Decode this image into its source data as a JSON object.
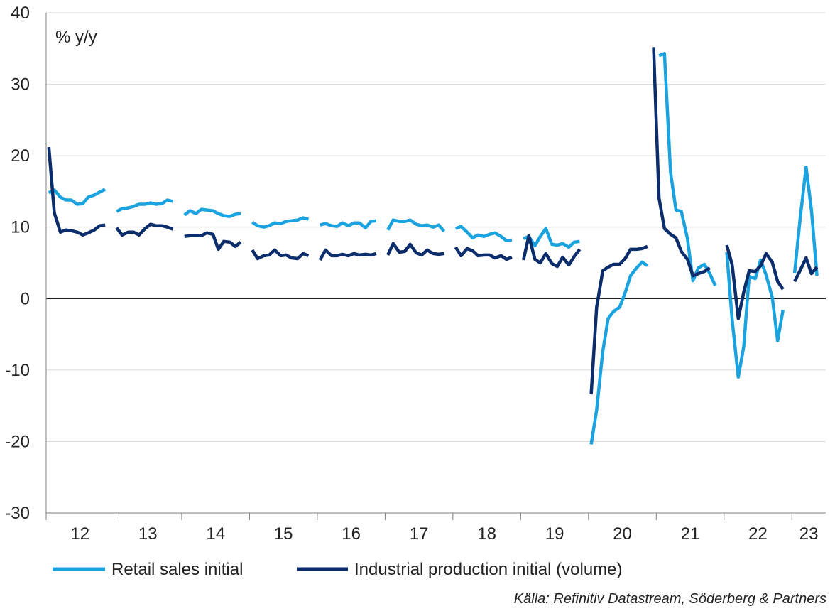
{
  "chart_data": {
    "type": "line",
    "unit_label": "% y/y",
    "source": "Källa: Refinitiv Datastream, Söderberg & Partners",
    "ylim": [
      -30,
      40
    ],
    "yticks": [
      40,
      30,
      20,
      10,
      0,
      -10,
      -20,
      -30
    ],
    "ytick_labels": [
      "40",
      "30",
      "20",
      "10",
      "0",
      "-10",
      "-20",
      "-30"
    ],
    "xlim": [
      2012.0,
      2023.5
    ],
    "xticks": [
      {
        "label": "12",
        "x": 2012.5
      },
      {
        "label": "13",
        "x": 2013.5
      },
      {
        "label": "14",
        "x": 2014.5
      },
      {
        "label": "15",
        "x": 2015.5
      },
      {
        "label": "16",
        "x": 2016.5
      },
      {
        "label": "17",
        "x": 2017.5
      },
      {
        "label": "18",
        "x": 2018.5
      },
      {
        "label": "19",
        "x": 2019.5
      },
      {
        "label": "20",
        "x": 2020.5
      },
      {
        "label": "21",
        "x": 2021.5
      },
      {
        "label": "22",
        "x": 2022.5
      },
      {
        "label": "23",
        "x": 2023.25
      }
    ],
    "grid": true,
    "legend_position": "bottom",
    "series": [
      {
        "name": "Retail sales initial",
        "color": "#1ba3e0",
        "segments": [
          [
            [
              2012.04,
              14.8
            ],
            [
              2012.12,
              15.2
            ],
            [
              2012.21,
              14.2
            ],
            [
              2012.29,
              13.8
            ],
            [
              2012.37,
              13.8
            ],
            [
              2012.46,
              13.2
            ],
            [
              2012.54,
              13.3
            ],
            [
              2012.62,
              14.2
            ],
            [
              2012.71,
              14.5
            ],
            [
              2012.79,
              14.9
            ],
            [
              2012.87,
              15.3
            ]
          ],
          [
            [
              2013.04,
              12.2
            ],
            [
              2013.12,
              12.6
            ],
            [
              2013.21,
              12.7
            ],
            [
              2013.29,
              12.9
            ],
            [
              2013.37,
              13.2
            ],
            [
              2013.46,
              13.2
            ],
            [
              2013.54,
              13.4
            ],
            [
              2013.62,
              13.2
            ],
            [
              2013.71,
              13.3
            ],
            [
              2013.79,
              13.8
            ],
            [
              2013.87,
              13.6
            ]
          ],
          [
            [
              2014.04,
              11.7
            ],
            [
              2014.12,
              12.3
            ],
            [
              2014.21,
              11.9
            ],
            [
              2014.29,
              12.5
            ],
            [
              2014.37,
              12.4
            ],
            [
              2014.46,
              12.3
            ],
            [
              2014.54,
              11.9
            ],
            [
              2014.62,
              11.6
            ],
            [
              2014.71,
              11.5
            ],
            [
              2014.79,
              11.8
            ],
            [
              2014.87,
              11.9
            ]
          ],
          [
            [
              2015.04,
              10.7
            ],
            [
              2015.12,
              10.2
            ],
            [
              2015.21,
              10.0
            ],
            [
              2015.29,
              10.2
            ],
            [
              2015.37,
              10.6
            ],
            [
              2015.46,
              10.5
            ],
            [
              2015.54,
              10.8
            ],
            [
              2015.62,
              10.9
            ],
            [
              2015.71,
              11.0
            ],
            [
              2015.79,
              11.3
            ],
            [
              2015.87,
              11.1
            ]
          ],
          [
            [
              2016.04,
              10.3
            ],
            [
              2016.12,
              10.5
            ],
            [
              2016.21,
              10.2
            ],
            [
              2016.29,
              10.1
            ],
            [
              2016.37,
              10.6
            ],
            [
              2016.46,
              10.2
            ],
            [
              2016.54,
              10.6
            ],
            [
              2016.62,
              10.6
            ],
            [
              2016.71,
              9.9
            ],
            [
              2016.79,
              10.8
            ],
            [
              2016.87,
              10.9
            ]
          ],
          [
            [
              2017.04,
              9.6
            ],
            [
              2017.12,
              11.0
            ],
            [
              2017.21,
              10.8
            ],
            [
              2017.29,
              10.8
            ],
            [
              2017.37,
              11.0
            ],
            [
              2017.46,
              10.4
            ],
            [
              2017.54,
              10.2
            ],
            [
              2017.62,
              10.3
            ],
            [
              2017.71,
              10.0
            ],
            [
              2017.79,
              10.3
            ],
            [
              2017.87,
              9.4
            ]
          ],
          [
            [
              2018.04,
              9.8
            ],
            [
              2018.12,
              10.1
            ],
            [
              2018.21,
              9.3
            ],
            [
              2018.29,
              8.5
            ],
            [
              2018.37,
              8.9
            ],
            [
              2018.46,
              8.7
            ],
            [
              2018.54,
              9.0
            ],
            [
              2018.62,
              9.2
            ],
            [
              2018.71,
              8.7
            ],
            [
              2018.79,
              8.1
            ],
            [
              2018.87,
              8.2
            ]
          ],
          [
            [
              2019.04,
              8.4
            ],
            [
              2019.12,
              8.7
            ],
            [
              2019.21,
              7.4
            ],
            [
              2019.29,
              8.7
            ],
            [
              2019.37,
              9.8
            ],
            [
              2019.46,
              7.6
            ],
            [
              2019.54,
              7.5
            ],
            [
              2019.62,
              7.7
            ],
            [
              2019.71,
              7.2
            ],
            [
              2019.79,
              7.9
            ],
            [
              2019.87,
              8.0
            ]
          ],
          [
            [
              2020.04,
              -20.4
            ],
            [
              2020.12,
              -15.6
            ],
            [
              2020.21,
              -7.4
            ],
            [
              2020.29,
              -2.8
            ],
            [
              2020.37,
              -1.8
            ],
            [
              2020.46,
              -1.2
            ],
            [
              2020.54,
              0.8
            ],
            [
              2020.62,
              3.2
            ],
            [
              2020.71,
              4.3
            ],
            [
              2020.79,
              5.1
            ],
            [
              2020.87,
              4.6
            ]
          ],
          [
            [
              2021.04,
              34.0
            ],
            [
              2021.12,
              34.3
            ],
            [
              2021.21,
              17.7
            ],
            [
              2021.29,
              12.4
            ],
            [
              2021.37,
              12.2
            ],
            [
              2021.46,
              8.4
            ],
            [
              2021.54,
              2.5
            ],
            [
              2021.62,
              4.3
            ],
            [
              2021.71,
              4.8
            ],
            [
              2021.79,
              3.5
            ],
            [
              2021.87,
              1.8
            ]
          ],
          [
            [
              2022.04,
              6.5
            ],
            [
              2022.12,
              -3.0
            ],
            [
              2022.21,
              -11.0
            ],
            [
              2022.29,
              -6.7
            ],
            [
              2022.37,
              3.1
            ],
            [
              2022.46,
              2.8
            ],
            [
              2022.54,
              5.4
            ],
            [
              2022.62,
              3.3
            ],
            [
              2022.71,
              0.2
            ],
            [
              2022.79,
              -5.9
            ],
            [
              2022.87,
              -1.6
            ]
          ],
          [
            [
              2023.04,
              3.6
            ],
            [
              2023.12,
              11.0
            ],
            [
              2023.21,
              18.4
            ],
            [
              2023.29,
              12.3
            ],
            [
              2023.37,
              3.2
            ]
          ]
        ]
      },
      {
        "name": "Industrial production initial (volume)",
        "color": "#0c2d6b",
        "segments": [
          [
            [
              2012.04,
              21.2
            ],
            [
              2012.12,
              12.0
            ],
            [
              2012.21,
              9.3
            ],
            [
              2012.29,
              9.6
            ],
            [
              2012.37,
              9.5
            ],
            [
              2012.46,
              9.3
            ],
            [
              2012.54,
              8.9
            ],
            [
              2012.62,
              9.2
            ],
            [
              2012.71,
              9.6
            ],
            [
              2012.79,
              10.2
            ],
            [
              2012.87,
              10.3
            ]
          ],
          [
            [
              2013.04,
              9.9
            ],
            [
              2013.12,
              8.9
            ],
            [
              2013.21,
              9.3
            ],
            [
              2013.29,
              9.3
            ],
            [
              2013.37,
              8.9
            ],
            [
              2013.46,
              9.8
            ],
            [
              2013.54,
              10.4
            ],
            [
              2013.62,
              10.2
            ],
            [
              2013.71,
              10.2
            ],
            [
              2013.79,
              10.0
            ],
            [
              2013.87,
              9.7
            ]
          ],
          [
            [
              2014.04,
              8.7
            ],
            [
              2014.12,
              8.8
            ],
            [
              2014.21,
              8.8
            ],
            [
              2014.29,
              8.8
            ],
            [
              2014.37,
              9.2
            ],
            [
              2014.46,
              9.0
            ],
            [
              2014.54,
              6.9
            ],
            [
              2014.62,
              8.0
            ],
            [
              2014.71,
              7.9
            ],
            [
              2014.79,
              7.3
            ],
            [
              2014.87,
              7.9
            ]
          ],
          [
            [
              2015.04,
              6.8
            ],
            [
              2015.12,
              5.6
            ],
            [
              2015.21,
              6.0
            ],
            [
              2015.29,
              6.1
            ],
            [
              2015.37,
              6.8
            ],
            [
              2015.46,
              6.0
            ],
            [
              2015.54,
              6.1
            ],
            [
              2015.62,
              5.7
            ],
            [
              2015.71,
              5.6
            ],
            [
              2015.79,
              6.3
            ],
            [
              2015.87,
              6.0
            ]
          ],
          [
            [
              2016.04,
              5.4
            ],
            [
              2016.12,
              6.8
            ],
            [
              2016.21,
              6.0
            ],
            [
              2016.29,
              6.0
            ],
            [
              2016.37,
              6.2
            ],
            [
              2016.46,
              6.0
            ],
            [
              2016.54,
              6.3
            ],
            [
              2016.62,
              6.1
            ],
            [
              2016.71,
              6.2
            ],
            [
              2016.79,
              6.1
            ],
            [
              2016.87,
              6.3
            ]
          ],
          [
            [
              2017.04,
              6.1
            ],
            [
              2017.12,
              7.7
            ],
            [
              2017.21,
              6.5
            ],
            [
              2017.29,
              6.6
            ],
            [
              2017.37,
              7.6
            ],
            [
              2017.46,
              6.4
            ],
            [
              2017.54,
              6.1
            ],
            [
              2017.62,
              6.8
            ],
            [
              2017.71,
              6.3
            ],
            [
              2017.79,
              6.2
            ],
            [
              2017.87,
              6.3
            ]
          ],
          [
            [
              2018.04,
              7.2
            ],
            [
              2018.12,
              6.0
            ],
            [
              2018.21,
              7.0
            ],
            [
              2018.29,
              6.7
            ],
            [
              2018.37,
              6.0
            ],
            [
              2018.46,
              6.1
            ],
            [
              2018.54,
              6.1
            ],
            [
              2018.62,
              5.7
            ],
            [
              2018.71,
              6.0
            ],
            [
              2018.79,
              5.5
            ],
            [
              2018.87,
              5.8
            ]
          ],
          [
            [
              2019.04,
              5.4
            ],
            [
              2019.12,
              8.8
            ],
            [
              2019.21,
              5.5
            ],
            [
              2019.29,
              5.0
            ],
            [
              2019.37,
              6.3
            ],
            [
              2019.46,
              4.9
            ],
            [
              2019.54,
              4.5
            ],
            [
              2019.62,
              5.8
            ],
            [
              2019.71,
              4.7
            ],
            [
              2019.79,
              5.9
            ],
            [
              2019.87,
              6.9
            ]
          ],
          [
            [
              2020.04,
              -13.4
            ],
            [
              2020.12,
              -1.2
            ],
            [
              2020.21,
              3.9
            ],
            [
              2020.29,
              4.4
            ],
            [
              2020.37,
              4.8
            ],
            [
              2020.46,
              4.8
            ],
            [
              2020.54,
              5.6
            ],
            [
              2020.62,
              6.9
            ],
            [
              2020.71,
              6.9
            ],
            [
              2020.79,
              7.0
            ],
            [
              2020.87,
              7.3
            ]
          ],
          [
            [
              2020.96,
              35.2
            ],
            [
              2021.04,
              14.1
            ],
            [
              2021.12,
              9.8
            ],
            [
              2021.21,
              9.0
            ],
            [
              2021.29,
              8.5
            ],
            [
              2021.37,
              6.6
            ],
            [
              2021.46,
              5.5
            ],
            [
              2021.54,
              3.2
            ],
            [
              2021.62,
              3.5
            ],
            [
              2021.71,
              3.8
            ],
            [
              2021.79,
              4.3
            ]
          ],
          [
            [
              2022.04,
              7.5
            ],
            [
              2022.12,
              4.7
            ],
            [
              2022.21,
              -2.8
            ],
            [
              2022.29,
              0.9
            ],
            [
              2022.37,
              3.9
            ],
            [
              2022.46,
              3.8
            ],
            [
              2022.54,
              4.6
            ],
            [
              2022.62,
              6.3
            ],
            [
              2022.71,
              5.1
            ],
            [
              2022.79,
              2.4
            ],
            [
              2022.87,
              1.3
            ]
          ],
          [
            [
              2023.04,
              2.4
            ],
            [
              2023.12,
              3.9
            ],
            [
              2023.21,
              5.7
            ],
            [
              2023.29,
              3.5
            ],
            [
              2023.37,
              4.4
            ]
          ]
        ]
      }
    ]
  }
}
